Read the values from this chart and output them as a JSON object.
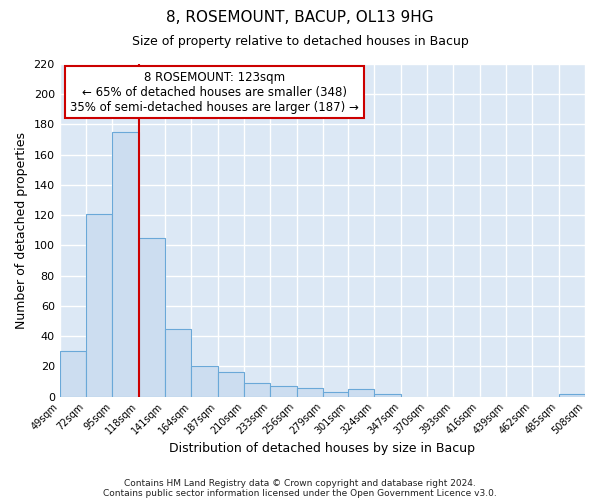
{
  "title": "8, ROSEMOUNT, BACUP, OL13 9HG",
  "subtitle": "Size of property relative to detached houses in Bacup",
  "xlabel": "Distribution of detached houses by size in Bacup",
  "ylabel": "Number of detached properties",
  "bin_labels": [
    "49sqm",
    "72sqm",
    "95sqm",
    "118sqm",
    "141sqm",
    "164sqm",
    "187sqm",
    "210sqm",
    "233sqm",
    "256sqm",
    "279sqm",
    "301sqm",
    "324sqm",
    "347sqm",
    "370sqm",
    "393sqm",
    "416sqm",
    "439sqm",
    "462sqm",
    "485sqm",
    "508sqm"
  ],
  "bin_edges": [
    49,
    72,
    95,
    118,
    141,
    164,
    187,
    210,
    233,
    256,
    279,
    301,
    324,
    347,
    370,
    393,
    416,
    439,
    462,
    485,
    508
  ],
  "bar_heights": [
    30,
    121,
    175,
    105,
    45,
    20,
    16,
    9,
    7,
    6,
    3,
    5,
    2,
    0,
    0,
    0,
    0,
    0,
    0,
    2
  ],
  "bar_color": "#ccddf0",
  "bar_edgecolor": "#6aa8d8",
  "vline_x": 118,
  "vline_color": "#cc0000",
  "ylim": [
    0,
    220
  ],
  "yticks": [
    0,
    20,
    40,
    60,
    80,
    100,
    120,
    140,
    160,
    180,
    200,
    220
  ],
  "annotation_title": "8 ROSEMOUNT: 123sqm",
  "annotation_line1": "← 65% of detached houses are smaller (348)",
  "annotation_line2": "35% of semi-detached houses are larger (187) →",
  "annotation_box_facecolor": "#ffffff",
  "annotation_box_edgecolor": "#cc0000",
  "footer1": "Contains HM Land Registry data © Crown copyright and database right 2024.",
  "footer2": "Contains public sector information licensed under the Open Government Licence v3.0.",
  "plot_bg_color": "#dce8f5",
  "fig_bg_color": "#ffffff",
  "grid_color": "#ffffff"
}
